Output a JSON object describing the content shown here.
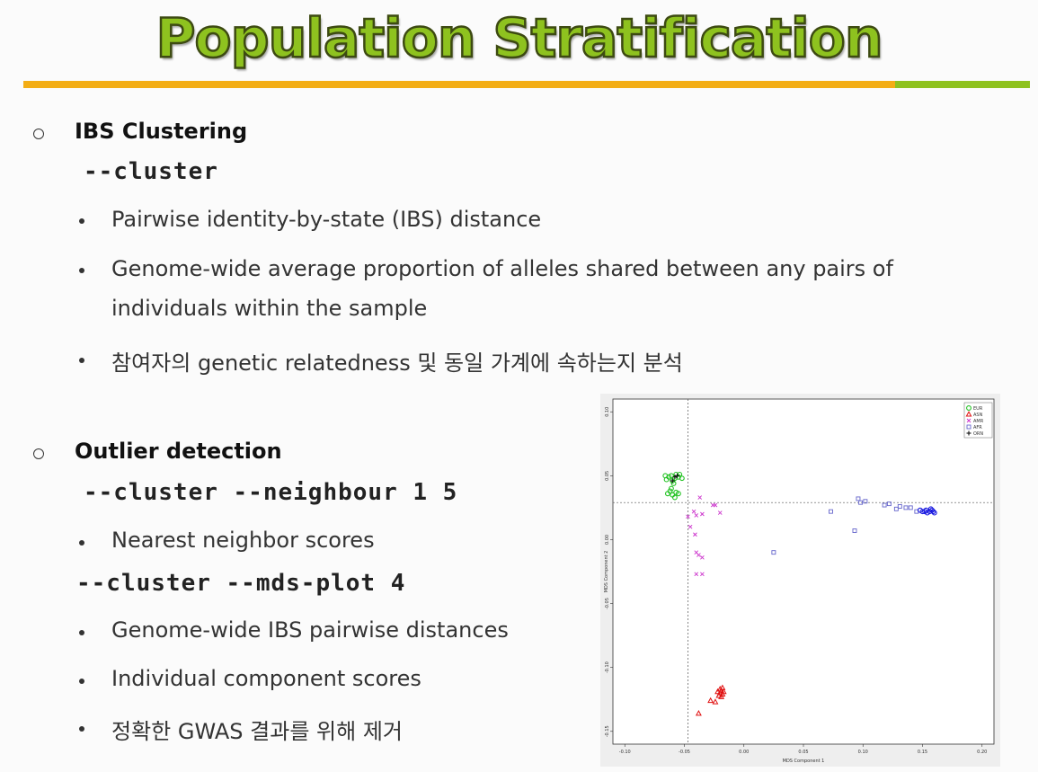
{
  "slide": {
    "title": "Population Stratification",
    "colors": {
      "title_green": "#8ec21f",
      "rule_orange": "#f3ad15",
      "rule_green": "#8ec21f"
    }
  },
  "section1": {
    "heading": "IBS Clustering",
    "command": "--cluster",
    "bullets": [
      "Pairwise identity-by-state (IBS) distance",
      "Genome-wide average proportion of alleles shared between any pairs of",
      "individuals within the sample",
      "참여자의 genetic relatedness 및 동일 가계에 속하는지 분석"
    ]
  },
  "section2": {
    "heading": "Outlier detection",
    "command1": "--cluster --neighbour 1 5",
    "bullet1": "Nearest neighbor scores",
    "command2": "--cluster --mds-plot 4",
    "bullets": [
      "Genome-wide IBS pairwise distances",
      "Individual component scores",
      "정확한 GWAS 결과를 위해 제거"
    ]
  },
  "chart_data": {
    "type": "scatter",
    "xlabel": "MDS Component 1",
    "ylabel": "MDS Component 2",
    "xlim": [
      -0.11,
      0.21
    ],
    "ylim": [
      -0.16,
      0.11
    ],
    "x_ticks": [
      "-0.10",
      "-0.05",
      "0.00",
      "0.05",
      "0.10",
      "0.15",
      "0.20"
    ],
    "y_ticks": [
      "0.10",
      "0.05",
      "0.00",
      "-0.05",
      "-0.10",
      "-0.15"
    ],
    "x_tick_values": [
      -0.1,
      -0.05,
      0.0,
      0.05,
      0.1,
      0.15,
      0.2
    ],
    "y_tick_values": [
      0.1,
      0.05,
      0.0,
      -0.05,
      -0.1,
      -0.15
    ],
    "reference_lines": {
      "x": -0.047,
      "y": 0.029
    },
    "legend_position": "top-right",
    "series": [
      {
        "name": "EUR",
        "marker": "o",
        "color": "#22c222",
        "points": [
          [
            -0.063,
            0.049
          ],
          [
            -0.061,
            0.05
          ],
          [
            -0.058,
            0.048
          ],
          [
            -0.055,
            0.049
          ],
          [
            -0.06,
            0.046
          ],
          [
            -0.057,
            0.051
          ],
          [
            -0.065,
            0.047
          ],
          [
            -0.052,
            0.048
          ],
          [
            -0.059,
            0.044
          ],
          [
            -0.062,
            0.038
          ],
          [
            -0.06,
            0.035
          ],
          [
            -0.057,
            0.037
          ],
          [
            -0.064,
            0.036
          ],
          [
            -0.061,
            0.04
          ],
          [
            -0.055,
            0.036
          ],
          [
            -0.066,
            0.05
          ],
          [
            -0.054,
            0.051
          ],
          [
            -0.058,
            0.033
          ]
        ]
      },
      {
        "name": "ASN",
        "marker": "^",
        "color": "#e01010",
        "points": [
          [
            -0.02,
            -0.12
          ],
          [
            -0.019,
            -0.118
          ],
          [
            -0.021,
            -0.122
          ],
          [
            -0.018,
            -0.121
          ],
          [
            -0.02,
            -0.117
          ],
          [
            -0.017,
            -0.119
          ],
          [
            -0.022,
            -0.119
          ],
          [
            -0.019,
            -0.123
          ],
          [
            -0.018,
            -0.116
          ],
          [
            -0.024,
            -0.127
          ],
          [
            -0.038,
            -0.136
          ],
          [
            -0.028,
            -0.126
          ]
        ]
      },
      {
        "name": "AMR",
        "marker": "x",
        "color": "#cc33cc",
        "points": [
          [
            -0.047,
            0.018
          ],
          [
            -0.045,
            0.01
          ],
          [
            -0.04,
            0.019
          ],
          [
            -0.041,
            0.004
          ],
          [
            -0.037,
            0.033
          ],
          [
            -0.035,
            0.02
          ],
          [
            -0.026,
            0.027
          ],
          [
            -0.024,
            0.027
          ],
          [
            -0.02,
            0.021
          ],
          [
            -0.04,
            -0.01
          ],
          [
            -0.038,
            -0.012
          ],
          [
            -0.035,
            -0.014
          ],
          [
            -0.04,
            -0.027
          ],
          [
            -0.035,
            -0.027
          ],
          [
            -0.042,
            0.022
          ]
        ]
      },
      {
        "name": "AFR",
        "marker": "s",
        "color": "#6666cc",
        "points": [
          [
            0.073,
            0.022
          ],
          [
            0.093,
            0.007
          ],
          [
            0.025,
            -0.01
          ],
          [
            0.096,
            0.032
          ],
          [
            0.102,
            0.03
          ],
          [
            0.098,
            0.029
          ],
          [
            0.122,
            0.028
          ],
          [
            0.128,
            0.024
          ],
          [
            0.136,
            0.025
          ],
          [
            0.118,
            0.027
          ],
          [
            0.131,
            0.026
          ],
          [
            0.14,
            0.025
          ],
          [
            0.145,
            0.022
          ]
        ]
      },
      {
        "name": "ORN",
        "marker": "+",
        "color": "#111111",
        "points": [
          [
            -0.058,
            0.049
          ],
          [
            -0.06,
            0.046
          ],
          [
            -0.056,
            0.05
          ]
        ]
      },
      {
        "name": "",
        "marker": "o",
        "color": "#1a1ae0",
        "points": [
          [
            0.15,
            0.022
          ],
          [
            0.153,
            0.023
          ],
          [
            0.156,
            0.022
          ],
          [
            0.158,
            0.023
          ],
          [
            0.16,
            0.021
          ],
          [
            0.154,
            0.021
          ],
          [
            0.157,
            0.024
          ],
          [
            0.152,
            0.022
          ],
          [
            0.159,
            0.022
          ],
          [
            0.148,
            0.023
          ]
        ]
      }
    ]
  }
}
